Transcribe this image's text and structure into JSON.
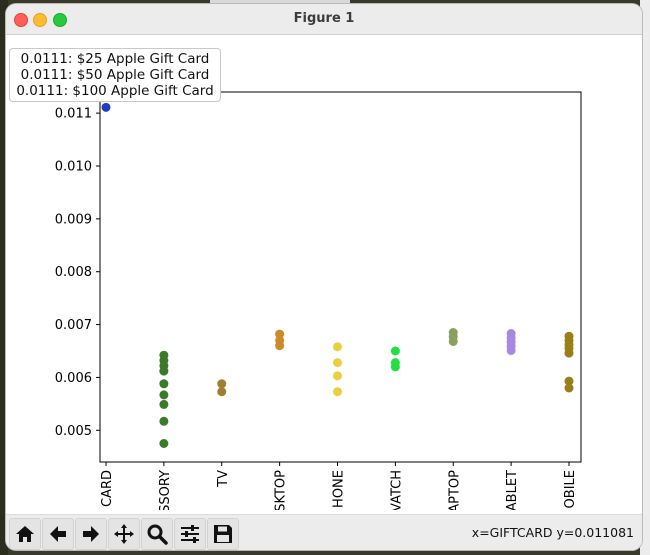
{
  "window": {
    "title": "Figure 1"
  },
  "tooltip": {
    "lines": [
      "0.0111: $25 Apple Gift Card",
      "0.0111: $50 Apple Gift Card",
      "0.0111: $100 Apple Gift Card"
    ]
  },
  "toolbar": {
    "buttons": [
      {
        "name": "home-button",
        "icon": "home-icon"
      },
      {
        "name": "back-button",
        "icon": "arrow-left-icon"
      },
      {
        "name": "forward-button",
        "icon": "arrow-right-icon"
      },
      {
        "name": "pan-button",
        "icon": "move-icon"
      },
      {
        "name": "zoom-button",
        "icon": "magnifier-icon"
      },
      {
        "name": "configure-subplots-button",
        "icon": "sliders-icon"
      },
      {
        "name": "save-button",
        "icon": "floppy-disk-icon"
      }
    ],
    "status": "x=GIFTCARD y=0.011081"
  },
  "chart_data": {
    "type": "scatter",
    "categories": [
      "CARD",
      "SSORY",
      "TV",
      "SKTOP",
      "HONE",
      "VATCH",
      "APTOP",
      "ABLET",
      "OBILE"
    ],
    "ylim": [
      0.0044,
      0.0114
    ],
    "yticks": [
      "0.005",
      "0.006",
      "0.007",
      "0.008",
      "0.009",
      "0.010",
      "0.011"
    ],
    "ytick_values": [
      0.005,
      0.006,
      0.007,
      0.008,
      0.009,
      0.01,
      0.011
    ],
    "grid": false,
    "series": [
      {
        "category": "CARD",
        "color": "#1f3fbf",
        "values": [
          0.01111
        ]
      },
      {
        "category": "SSORY",
        "color": "#3b7a2a",
        "values": [
          0.00642,
          0.00632,
          0.00622,
          0.00612,
          0.00588,
          0.00567,
          0.00549,
          0.00517,
          0.00475
        ]
      },
      {
        "category": "TV",
        "color": "#a08030",
        "values": [
          0.00588,
          0.00573
        ]
      },
      {
        "category": "SKTOP",
        "color": "#cc8a2a",
        "values": [
          0.00682,
          0.0067,
          0.0066
        ]
      },
      {
        "category": "HONE",
        "color": "#e8d040",
        "values": [
          0.00658,
          0.00628,
          0.00603,
          0.00573
        ]
      },
      {
        "category": "VATCH",
        "color": "#22e040",
        "values": [
          0.0065,
          0.00628,
          0.0062
        ]
      },
      {
        "category": "APTOP",
        "color": "#8aa060",
        "values": [
          0.00685,
          0.00677,
          0.00668
        ]
      },
      {
        "category": "ABLET",
        "color": "#a888e0",
        "values": [
          0.00683,
          0.00675,
          0.00667,
          0.00659,
          0.00651
        ]
      },
      {
        "category": "OBILE",
        "color": "#9a7e18",
        "values": [
          0.00678,
          0.0067,
          0.00662,
          0.00655,
          0.00646,
          0.00593,
          0.0058
        ]
      }
    ]
  }
}
